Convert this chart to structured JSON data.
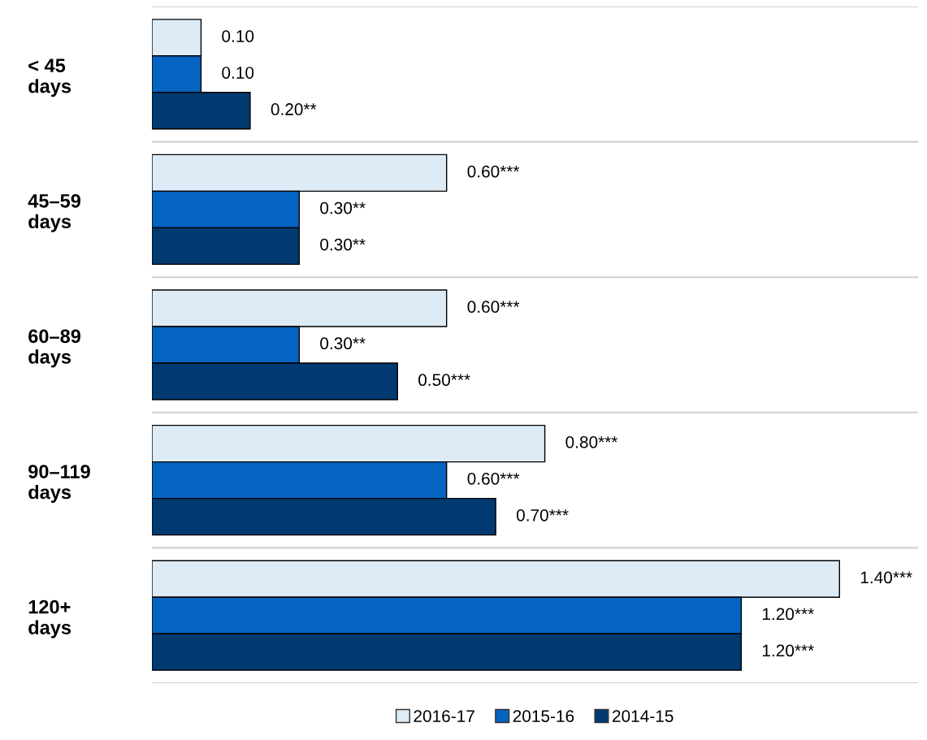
{
  "chart_data": {
    "type": "bar",
    "orientation": "horizontal",
    "categories": [
      "< 45\ndays",
      "45–59\ndays",
      "60–89\ndays",
      "90–119\ndays",
      "120+\ndays"
    ],
    "series": [
      {
        "name": "2016-17",
        "color": "#ddebf7",
        "values": [
          0.1,
          0.6,
          0.6,
          0.8,
          1.4
        ],
        "value_labels": [
          "0.10",
          "0.60***",
          "0.60***",
          "0.80***",
          "1.40***"
        ]
      },
      {
        "name": "2015-16",
        "color": "#0563c1",
        "values": [
          0.1,
          0.3,
          0.3,
          0.6,
          1.2
        ],
        "value_labels": [
          "0.10",
          "0.30**",
          "0.30**",
          "0.60***",
          "1.20***"
        ]
      },
      {
        "name": "2014-15",
        "color": "#003a70",
        "values": [
          0.2,
          0.3,
          0.5,
          0.7,
          1.2
        ],
        "value_labels": [
          "0.20**",
          "0.30**",
          "0.50***",
          "0.70***",
          "1.20***"
        ]
      }
    ],
    "xlim": [
      0,
      1.56
    ],
    "tick_labels": "y",
    "grid": "y",
    "legend": "bottom"
  }
}
